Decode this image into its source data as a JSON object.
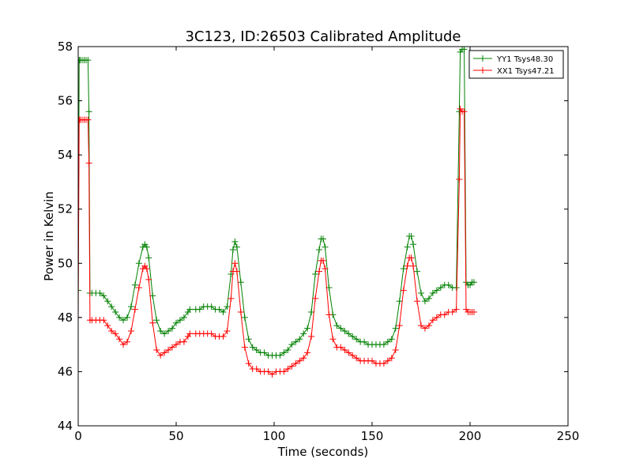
{
  "chart_data": {
    "type": "line",
    "title": "3C123, ID:26503 Calibrated Amplitude",
    "xlabel": "Time (seconds)",
    "ylabel": "Power in Kelvin",
    "xlim": [
      0,
      250
    ],
    "ylim": [
      44,
      58
    ],
    "xticks": [
      "0",
      "50",
      "100",
      "150",
      "200",
      "250"
    ],
    "yticks": [
      "44",
      "46",
      "48",
      "50",
      "52",
      "54",
      "56",
      "58"
    ],
    "grid": false,
    "legend_position": "top-right",
    "marker": "+",
    "series": [
      {
        "name": "YY1 Tsys48.30",
        "color": "#008000",
        "x": [
          0,
          0.5,
          1,
          2,
          3,
          4,
          5,
          5.5,
          6,
          7,
          9,
          11,
          13,
          15,
          17,
          19,
          21,
          23,
          25,
          27,
          29,
          31,
          33,
          34,
          35,
          36,
          38,
          40,
          42,
          44,
          46,
          48,
          50,
          52,
          54,
          56,
          57,
          60,
          62,
          64,
          66,
          68,
          70,
          72,
          74,
          76,
          78,
          79,
          80,
          81,
          83,
          85,
          87,
          89,
          91,
          93,
          95,
          97,
          99,
          101,
          103,
          105,
          107,
          109,
          111,
          113,
          115,
          117,
          119,
          121,
          123,
          124,
          125,
          126,
          128,
          130,
          132,
          134,
          136,
          138,
          140,
          142,
          144,
          146,
          148,
          150,
          152,
          154,
          156,
          158,
          160,
          162,
          164,
          166,
          168,
          169,
          170,
          171,
          173,
          175,
          177,
          179,
          181,
          183,
          185,
          187,
          189,
          191,
          193,
          194.5,
          195,
          196,
          197,
          198,
          199,
          200,
          201,
          202
        ],
        "y": [
          49.0,
          57.5,
          57.5,
          57.5,
          57.5,
          57.5,
          57.5,
          55.6,
          48.9,
          48.9,
          48.9,
          48.9,
          48.8,
          48.6,
          48.4,
          48.2,
          48.0,
          47.9,
          48.0,
          48.4,
          49.2,
          50.0,
          50.6,
          50.7,
          50.6,
          50.2,
          48.8,
          47.9,
          47.5,
          47.4,
          47.5,
          47.6,
          47.8,
          47.9,
          48.0,
          48.2,
          48.3,
          48.3,
          48.3,
          48.4,
          48.4,
          48.4,
          48.3,
          48.3,
          48.2,
          48.4,
          49.6,
          50.5,
          50.8,
          50.6,
          49.3,
          48.0,
          47.2,
          46.9,
          46.8,
          46.7,
          46.7,
          46.6,
          46.6,
          46.6,
          46.6,
          46.7,
          46.8,
          47.0,
          47.1,
          47.2,
          47.4,
          47.6,
          48.2,
          49.6,
          50.5,
          50.9,
          50.9,
          50.6,
          49.1,
          48.1,
          47.7,
          47.6,
          47.5,
          47.4,
          47.3,
          47.2,
          47.1,
          47.1,
          47.0,
          47.0,
          47.0,
          47.0,
          47.0,
          47.1,
          47.2,
          47.6,
          48.6,
          49.8,
          50.6,
          51.0,
          51.0,
          50.7,
          49.7,
          48.9,
          48.6,
          48.7,
          48.9,
          49.0,
          49.1,
          49.2,
          49.2,
          49.1,
          49.1,
          55.6,
          57.8,
          57.9,
          57.9,
          49.3,
          49.2,
          49.2,
          49.3,
          49.3
        ]
      },
      {
        "name": "XX1 Tsys47.21",
        "color": "#ff0000",
        "x": [
          0,
          0.5,
          1,
          2,
          3,
          4,
          5,
          5.5,
          6,
          7,
          9,
          11,
          13,
          15,
          17,
          19,
          21,
          23,
          25,
          27,
          29,
          31,
          33,
          34,
          35,
          36,
          38,
          40,
          42,
          44,
          46,
          48,
          50,
          52,
          54,
          56,
          57,
          60,
          62,
          64,
          66,
          68,
          70,
          72,
          74,
          76,
          78,
          79,
          80,
          81,
          83,
          85,
          87,
          89,
          91,
          93,
          95,
          97,
          99,
          101,
          103,
          105,
          107,
          109,
          111,
          113,
          115,
          117,
          119,
          121,
          123,
          124,
          125,
          126,
          128,
          130,
          132,
          134,
          136,
          138,
          140,
          142,
          144,
          146,
          148,
          150,
          152,
          154,
          156,
          158,
          160,
          162,
          164,
          166,
          168,
          169,
          170,
          171,
          173,
          175,
          177,
          179,
          181,
          183,
          185,
          187,
          189,
          191,
          193,
          194.5,
          195,
          196,
          197,
          198,
          199,
          200,
          201,
          202
        ],
        "y": [
          48.0,
          55.3,
          55.3,
          55.3,
          55.3,
          55.3,
          55.3,
          53.7,
          47.9,
          47.9,
          47.9,
          47.9,
          47.9,
          47.7,
          47.5,
          47.4,
          47.2,
          47.0,
          47.1,
          47.5,
          48.3,
          49.1,
          49.8,
          49.9,
          49.8,
          49.4,
          47.8,
          46.8,
          46.6,
          46.7,
          46.8,
          46.9,
          47.0,
          47.1,
          47.1,
          47.3,
          47.4,
          47.4,
          47.4,
          47.4,
          47.4,
          47.4,
          47.3,
          47.3,
          47.3,
          47.5,
          48.7,
          49.7,
          50.0,
          49.7,
          48.2,
          46.9,
          46.3,
          46.1,
          46.1,
          46.0,
          46.0,
          46.0,
          45.9,
          46.0,
          46.0,
          46.0,
          46.1,
          46.2,
          46.3,
          46.4,
          46.5,
          46.7,
          47.3,
          48.7,
          49.7,
          50.1,
          50.1,
          49.8,
          48.1,
          47.2,
          46.9,
          46.9,
          46.8,
          46.7,
          46.6,
          46.5,
          46.4,
          46.4,
          46.4,
          46.4,
          46.3,
          46.3,
          46.3,
          46.4,
          46.5,
          46.8,
          47.7,
          49.0,
          49.9,
          50.2,
          50.2,
          49.9,
          48.6,
          47.7,
          47.6,
          47.7,
          47.9,
          48.0,
          48.1,
          48.1,
          48.2,
          48.2,
          48.3,
          53.1,
          55.7,
          55.6,
          55.6,
          48.3,
          48.2,
          48.2,
          48.2,
          48.2
        ]
      }
    ]
  }
}
